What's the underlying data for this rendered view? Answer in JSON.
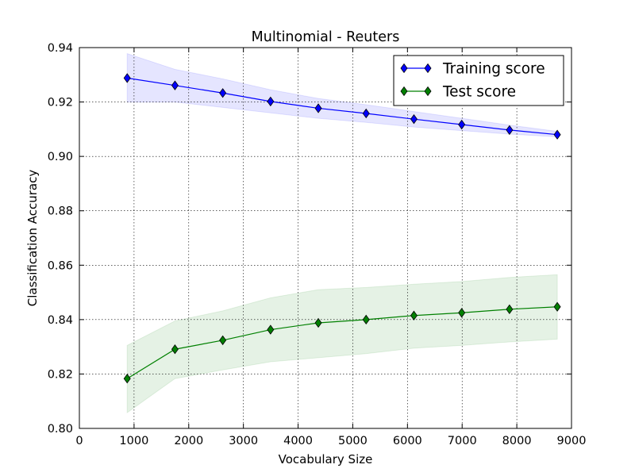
{
  "chart_data": {
    "type": "line",
    "title": "Multinomial - Reuters",
    "xlabel": "Vocabulary Size",
    "ylabel": "Classification Accuracy",
    "xlim": [
      0,
      9000
    ],
    "ylim": [
      0.8,
      0.94
    ],
    "grid": true,
    "legend_position": "top-right",
    "x_ticks": [
      "0",
      "1000",
      "2000",
      "3000",
      "4000",
      "5000",
      "6000",
      "7000",
      "8000",
      "9000"
    ],
    "y_ticks": [
      "0.80",
      "0.82",
      "0.84",
      "0.86",
      "0.88",
      "0.90",
      "0.92",
      "0.94"
    ],
    "x": [
      874,
      1748,
      2622,
      3496,
      4370,
      5244,
      6118,
      6992,
      7866,
      8740
    ],
    "series": [
      {
        "name": "Training score",
        "color": "#0000ff",
        "band_color": "#0000ff",
        "values": [
          0.9288,
          0.9261,
          0.9233,
          0.9202,
          0.9177,
          0.9158,
          0.9137,
          0.9117,
          0.9097,
          0.908
        ],
        "lower": [
          0.92,
          0.92,
          0.918,
          0.916,
          0.914,
          0.9125,
          0.9108,
          0.9095,
          0.9082,
          0.9072
        ],
        "upper": [
          0.9378,
          0.932,
          0.9285,
          0.9245,
          0.9213,
          0.919,
          0.9165,
          0.914,
          0.9115,
          0.9092
        ]
      },
      {
        "name": "Test score",
        "color": "#008000",
        "band_color": "#008000",
        "values": [
          0.8183,
          0.8291,
          0.8324,
          0.8363,
          0.8388,
          0.84,
          0.8415,
          0.8425,
          0.8438,
          0.8447
        ],
        "lower": [
          0.8058,
          0.8183,
          0.8215,
          0.8245,
          0.826,
          0.8275,
          0.8295,
          0.8305,
          0.8318,
          0.8328
        ],
        "upper": [
          0.8305,
          0.8395,
          0.8432,
          0.848,
          0.851,
          0.8518,
          0.853,
          0.854,
          0.8555,
          0.8565
        ]
      }
    ]
  }
}
